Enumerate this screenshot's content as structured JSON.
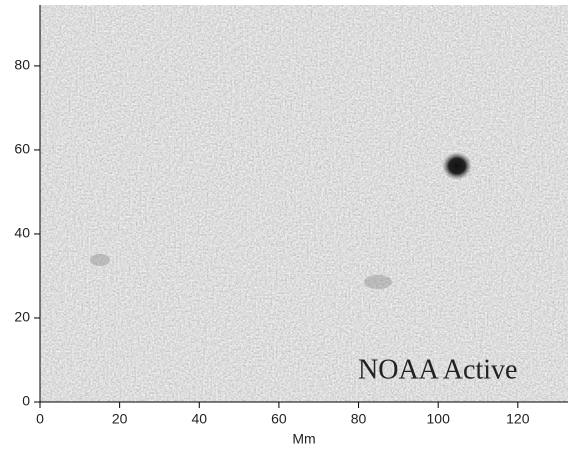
{
  "chart_data": {
    "type": "image",
    "xlabel": "Mm",
    "xlim": [
      0,
      132.6
    ],
    "ylim": [
      0,
      94.5
    ],
    "xticks": [
      0,
      20,
      40,
      60,
      80,
      100,
      120
    ],
    "yticks": [
      0,
      20,
      40,
      60,
      80
    ],
    "annotation": "NOAA Active",
    "annotation_color": "#1010e0"
  }
}
